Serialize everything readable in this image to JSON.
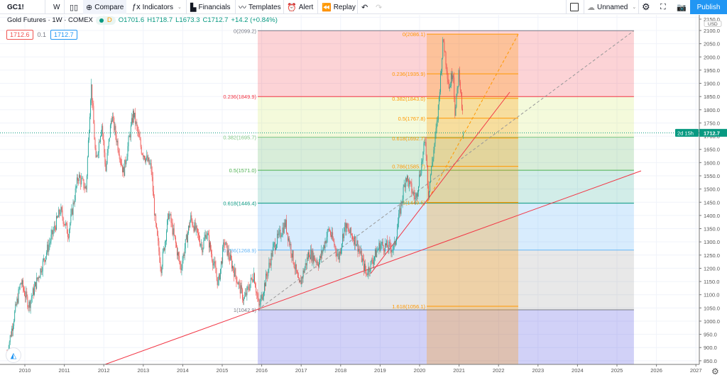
{
  "toolbar": {
    "symbol": "GC1!",
    "interval": "W",
    "compare": "Compare",
    "indicators": "Indicators",
    "financials": "Financials",
    "templates": "Templates",
    "alert": "Alert",
    "replay": "Replay",
    "layout_name": "Unnamed",
    "publish": "Publish"
  },
  "legend": {
    "title": "Gold Futures · 1W · COMEX",
    "badge": "D",
    "open": "O1701.6",
    "high": "H1718.7",
    "low": "L1673.3",
    "close": "C1712.7",
    "change": "+14.2 (+0.84%)",
    "bid": "1712.6",
    "spread": "0.1",
    "ask": "1712.7"
  },
  "price_axis": {
    "currency": "USD",
    "ticks": [
      2150,
      2100,
      2050,
      2000,
      1950,
      1900,
      1850,
      1800,
      1750,
      1700,
      1650,
      1600,
      1550,
      1500,
      1450,
      1400,
      1350,
      1300,
      1250,
      1200,
      1150,
      1100,
      1050,
      1000,
      950,
      900,
      850
    ],
    "last_price": "1712.7",
    "countdown": "2d 15h"
  },
  "time_axis": {
    "labels": [
      "2010",
      "2011",
      "2012",
      "2013",
      "2014",
      "2015",
      "2016",
      "2017",
      "2018",
      "2019",
      "2020",
      "2021",
      "2022",
      "2023",
      "2024",
      "2025",
      "2026",
      "2027"
    ]
  },
  "colors": {
    "up": "#26a69a",
    "down": "#ef5350",
    "accent": "#2196f3",
    "last": "#089981"
  },
  "fib_large": {
    "levels": [
      {
        "ratio": "0",
        "price": 2099.2,
        "label": "0(2099.2)",
        "color": "#787b86",
        "fill": "rgba(242,54,69,0.22)"
      },
      {
        "ratio": "0.236",
        "price": 1849.9,
        "label": "0.236(1849.9)",
        "color": "#f23645",
        "fill": "rgba(205,230,90,0.22)"
      },
      {
        "ratio": "0.382",
        "price": 1695.7,
        "label": "0.382(1695.7)",
        "color": "#81c784",
        "fill": "rgba(76,175,80,0.22)"
      },
      {
        "ratio": "0.5",
        "price": 1571.0,
        "label": "0.5(1571.0)",
        "color": "#4caf50",
        "fill": "rgba(8,153,129,0.18)"
      },
      {
        "ratio": "0.618",
        "price": 1446.4,
        "label": "0.618(1446.4)",
        "color": "#089981",
        "fill": "rgba(100,181,246,0.25)"
      },
      {
        "ratio": "0.786",
        "price": 1268.9,
        "label": "0.786(1268.9)",
        "color": "#64b5f6",
        "fill": "rgba(150,150,150,0.22)"
      },
      {
        "ratio": "1",
        "price": 1042.9,
        "label": "1(1042.9)",
        "color": "#787b86",
        "fill": "rgba(103,103,230,0.3)"
      }
    ]
  },
  "fib_small": {
    "color": "#ff9800",
    "levels": [
      {
        "price": 2086.1,
        "label": "0(2086.1)"
      },
      {
        "price": 1935.9,
        "label": "0.236(1935.9)"
      },
      {
        "price": 1843.0,
        "label": "0.382(1843.0)"
      },
      {
        "price": 1767.8,
        "label": "0.5(1767.8)"
      },
      {
        "price": 1692.7,
        "label": "0.618(1692.7)"
      },
      {
        "price": 1585.7,
        "label": "0.786(1585.7)"
      },
      {
        "price": 1449.5,
        "label": "1(1449.5)"
      },
      {
        "price": 1056.1,
        "label": "1.618(1056.1)"
      }
    ]
  },
  "price_path": [
    [
      2009.55,
      880
    ],
    [
      2009.9,
      1150
    ],
    [
      2010.1,
      1060
    ],
    [
      2010.9,
      1420
    ],
    [
      2011.1,
      1330
    ],
    [
      2011.35,
      1550
    ],
    [
      2011.55,
      1500
    ],
    [
      2011.68,
      1900
    ],
    [
      2011.8,
      1600
    ],
    [
      2011.95,
      1750
    ],
    [
      2012.05,
      1570
    ],
    [
      2012.2,
      1780
    ],
    [
      2012.5,
      1560
    ],
    [
      2012.75,
      1790
    ],
    [
      2012.95,
      1650
    ],
    [
      2013.2,
      1580
    ],
    [
      2013.3,
      1380
    ],
    [
      2013.45,
      1200
    ],
    [
      2013.65,
      1410
    ],
    [
      2013.95,
      1200
    ],
    [
      2014.2,
      1390
    ],
    [
      2014.5,
      1280
    ],
    [
      2014.6,
      1340
    ],
    [
      2014.9,
      1140
    ],
    [
      2015.05,
      1300
    ],
    [
      2015.55,
      1080
    ],
    [
      2015.8,
      1180
    ],
    [
      2015.93,
      1050
    ],
    [
      2016.3,
      1280
    ],
    [
      2016.6,
      1370
    ],
    [
      2016.95,
      1130
    ],
    [
      2017.2,
      1260
    ],
    [
      2017.45,
      1220
    ],
    [
      2017.7,
      1350
    ],
    [
      2017.95,
      1240
    ],
    [
      2018.1,
      1360
    ],
    [
      2018.4,
      1300
    ],
    [
      2018.65,
      1180
    ],
    [
      2019.0,
      1290
    ],
    [
      2019.35,
      1275
    ],
    [
      2019.65,
      1550
    ],
    [
      2019.9,
      1460
    ],
    [
      2020.15,
      1690
    ],
    [
      2020.22,
      1480
    ],
    [
      2020.45,
      1760
    ],
    [
      2020.6,
      2070
    ],
    [
      2020.75,
      1880
    ],
    [
      2020.85,
      1960
    ],
    [
      2020.9,
      1780
    ],
    [
      2021.0,
      1950
    ],
    [
      2021.12,
      1712.7
    ]
  ]
}
